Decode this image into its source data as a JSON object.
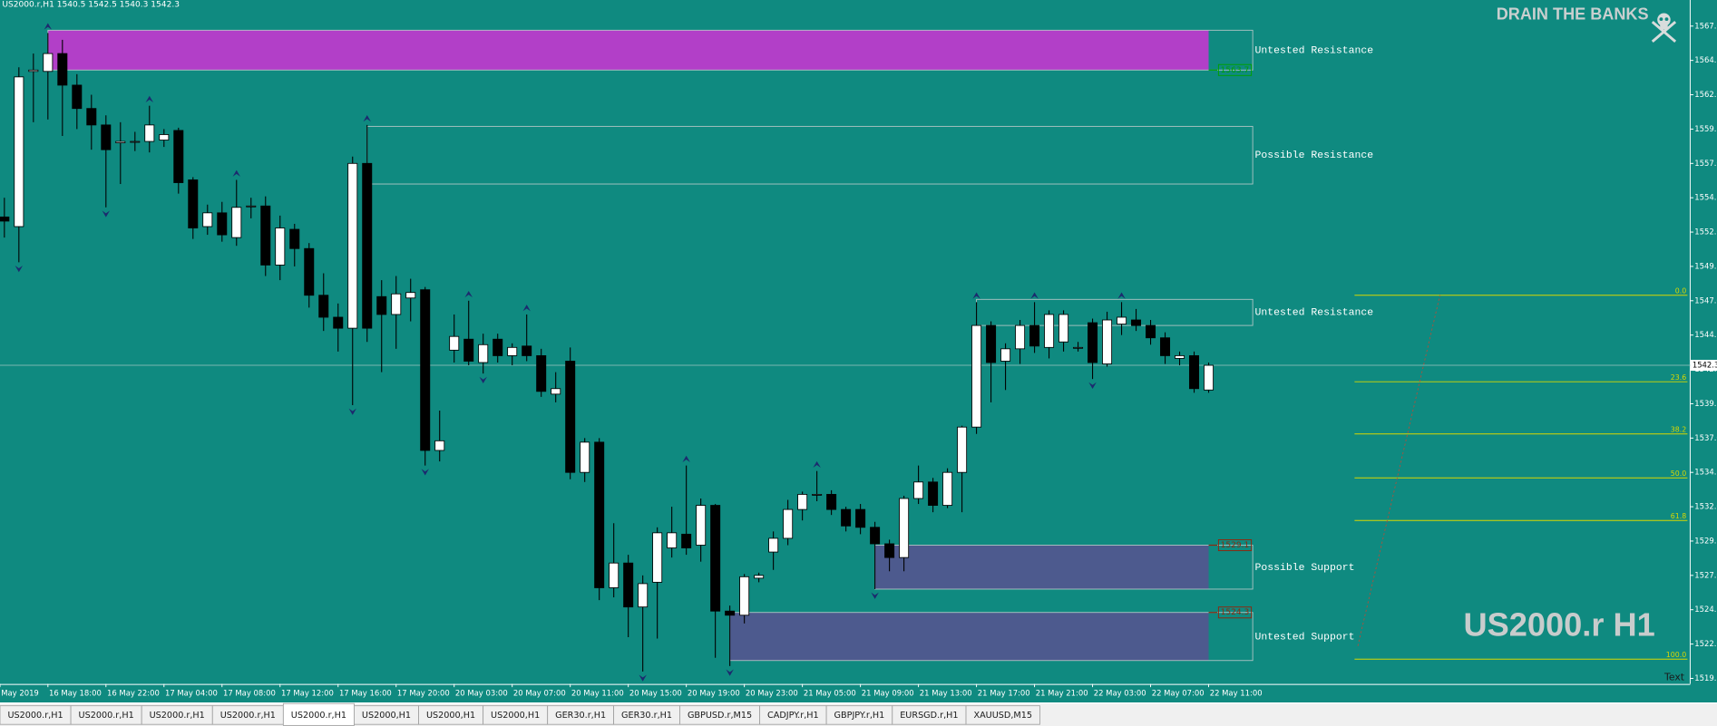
{
  "chart_data": {
    "type": "candlestick",
    "header": "US2000.r,H1  1540.5 1542.5 1540.3 1542.3",
    "brand": "DRAIN THE BANKS",
    "watermark": "US2000.r H1",
    "corner_text": "Text",
    "background": "#0f8a80",
    "categories": [
      "May 2019",
      null,
      null,
      "16 May 18:00",
      null,
      null,
      null,
      "16 May 22:00",
      null,
      null,
      null,
      "17 May 04:00",
      null,
      null,
      null,
      "17 May 08:00",
      null,
      null,
      null,
      "17 May 12:00",
      null,
      null,
      null,
      "17 May 16:00",
      null,
      null,
      null,
      "17 May 20:00",
      null,
      null,
      null,
      "20 May 03:00",
      null,
      null,
      null,
      "20 May 07:00",
      null,
      null,
      null,
      "20 May 11:00",
      null,
      null,
      null,
      "20 May 15:00",
      null,
      null,
      null,
      "20 May 19:00",
      null,
      null,
      null,
      "20 May 23:00",
      null,
      null,
      null,
      "21 May 05:00",
      null,
      null,
      null,
      "21 May 09:00",
      null,
      null,
      null,
      "21 May 13:00",
      null,
      null,
      null,
      "21 May 17:00",
      null,
      null,
      null,
      "21 May 21:00",
      null,
      null,
      null,
      "22 May 03:00",
      null,
      null,
      null,
      "22 May 07:00",
      null,
      null,
      null,
      "22 May 11:00"
    ],
    "open": [
      1553.1,
      1552.4,
      1563.7,
      1563.7,
      1565.0,
      1562.7,
      1561.0,
      1559.8,
      1558.5,
      1558.6,
      1558.6,
      1558.7,
      1559.4,
      1555.8,
      1552.4,
      1553.4,
      1551.6,
      1553.9,
      1553.9,
      1549.6,
      1552.2,
      1550.8,
      1547.4,
      1545.8,
      1545.0,
      1557.0,
      1547.3,
      1546.0,
      1547.2,
      1547.8,
      1536.1,
      1543.4,
      1544.2,
      1542.5,
      1544.2,
      1543.0,
      1543.7,
      1543.0,
      1540.2,
      1542.6,
      1534.5,
      1536.7,
      1526.1,
      1527.9,
      1524.7,
      1526.5,
      1529.0,
      1530.0,
      1529.2,
      1532.1,
      1524.4,
      1524.1,
      1526.8,
      1528.7,
      1529.7,
      1531.8,
      1532.9,
      1532.9,
      1531.8,
      1531.8,
      1530.5,
      1529.3,
      1528.3,
      1532.6,
      1533.8,
      1532.1,
      1534.5,
      1537.8,
      1545.2,
      1542.6,
      1543.5,
      1545.2,
      1543.6,
      1544.0,
      1543.6,
      1545.4,
      1542.4,
      1545.3,
      1545.6,
      1545.2,
      1544.3,
      1542.8,
      1543.0,
      1540.5
    ],
    "high": [
      1554.5,
      1564.0,
      1565.0,
      1566.5,
      1566.0,
      1563.5,
      1562.0,
      1560.5,
      1560.0,
      1559.3,
      1561.2,
      1559.5,
      1559.6,
      1556.0,
      1554.0,
      1554.2,
      1555.8,
      1554.5,
      1554.6,
      1553.2,
      1552.6,
      1551.2,
      1549.0,
      1546.8,
      1557.5,
      1559.8,
      1548.5,
      1548.8,
      1548.6,
      1548.0,
      1539.0,
      1546.0,
      1547.0,
      1544.6,
      1544.6,
      1543.9,
      1546.0,
      1543.5,
      1541.8,
      1543.6,
      1537.0,
      1537.0,
      1530.8,
      1528.5,
      1527.0,
      1530.5,
      1532.0,
      1535.0,
      1532.6,
      1532.2,
      1524.8,
      1527.1,
      1527.2,
      1530.2,
      1532.5,
      1533.1,
      1534.6,
      1533.2,
      1532.0,
      1532.2,
      1530.9,
      1529.6,
      1532.8,
      1535.0,
      1534.1,
      1534.8,
      1537.9,
      1546.9,
      1545.5,
      1543.9,
      1545.6,
      1546.9,
      1546.3,
      1546.3,
      1544.0,
      1545.7,
      1546.2,
      1546.9,
      1546.4,
      1545.6,
      1544.7,
      1543.3,
      1543.3,
      1542.5
    ],
    "low": [
      1551.6,
      1549.8,
      1560.0,
      1560.2,
      1559.0,
      1559.5,
      1558.0,
      1553.8,
      1555.5,
      1557.9,
      1557.8,
      1558.2,
      1554.8,
      1551.5,
      1551.8,
      1551.3,
      1551.0,
      1553.0,
      1548.8,
      1548.5,
      1549.5,
      1546.5,
      1544.8,
      1543.3,
      1539.4,
      1544.0,
      1541.8,
      1543.5,
      1545.5,
      1535.0,
      1535.3,
      1542.5,
      1542.3,
      1541.7,
      1542.5,
      1542.3,
      1542.6,
      1540.0,
      1539.6,
      1534.0,
      1533.8,
      1525.2,
      1525.4,
      1522.5,
      1520.0,
      1522.4,
      1528.3,
      1528.5,
      1528.0,
      1521.0,
      1520.4,
      1523.5,
      1526.5,
      1527.4,
      1529.2,
      1531.0,
      1532.4,
      1531.4,
      1530.2,
      1530.0,
      1526.0,
      1527.3,
      1527.3,
      1532.2,
      1531.6,
      1531.9,
      1531.6,
      1537.3,
      1539.6,
      1540.5,
      1542.4,
      1543.2,
      1542.8,
      1543.3,
      1543.3,
      1541.3,
      1542.2,
      1544.5,
      1544.8,
      1543.8,
      1542.4,
      1542.3,
      1540.3,
      1540.3
    ],
    "close": [
      1552.8,
      1563.3,
      1563.8,
      1565.0,
      1562.7,
      1561.0,
      1559.8,
      1558.0,
      1558.6,
      1558.6,
      1559.8,
      1559.1,
      1555.6,
      1552.3,
      1553.4,
      1551.8,
      1553.8,
      1553.9,
      1549.6,
      1552.3,
      1550.8,
      1547.4,
      1545.8,
      1545.0,
      1557.0,
      1545.0,
      1546.0,
      1547.5,
      1547.6,
      1536.1,
      1536.8,
      1544.4,
      1542.6,
      1543.8,
      1543.0,
      1543.6,
      1543.0,
      1540.4,
      1540.6,
      1534.5,
      1536.7,
      1526.1,
      1527.9,
      1524.7,
      1526.4,
      1530.1,
      1530.1,
      1529.0,
      1532.1,
      1524.4,
      1524.1,
      1526.9,
      1527.0,
      1529.7,
      1531.8,
      1532.9,
      1532.9,
      1531.8,
      1530.6,
      1530.5,
      1529.3,
      1528.3,
      1532.6,
      1533.8,
      1532.1,
      1534.5,
      1537.8,
      1545.2,
      1542.5,
      1543.5,
      1545.2,
      1543.7,
      1546.0,
      1546.0,
      1543.6,
      1542.5,
      1545.6,
      1545.8,
      1545.2,
      1544.3,
      1543.0,
      1543.0,
      1540.6,
      1542.3
    ],
    "bull_color": "#ffffff",
    "bear_color": "#000000",
    "fractals_up": [
      3,
      10,
      16,
      25,
      32,
      36,
      47,
      56,
      67,
      71,
      77
    ],
    "fractals_down": [
      1,
      7,
      24,
      29,
      33,
      44,
      50,
      60,
      75
    ],
    "fractal_color": "#1c2a6e",
    "ylim": [
      1519.1,
      1568.9
    ],
    "yticks": [
      {
        "value": 1519.5,
        "label": "1519.5"
      },
      {
        "value": 1522,
        "label": "1522.0"
      },
      {
        "value": 1524.5,
        "label": "1524.5"
      },
      {
        "value": 1527,
        "label": "1527.0"
      },
      {
        "value": 1529.5,
        "label": "1529.5"
      },
      {
        "value": 1532,
        "label": "1532.0"
      },
      {
        "value": 1534.5,
        "label": "1534.5"
      },
      {
        "value": 1537,
        "label": "1537.0"
      },
      {
        "value": 1539.5,
        "label": "1539.5"
      },
      {
        "value": 1542,
        "label": "1542.0"
      },
      {
        "value": 1544.5,
        "label": "1544.5"
      },
      {
        "value": 1547,
        "label": "1547.0"
      },
      {
        "value": 1549.5,
        "label": "1549.5"
      },
      {
        "value": 1552,
        "label": "1552.0"
      },
      {
        "value": 1554.5,
        "label": "1554.5"
      },
      {
        "value": 1557,
        "label": "1557.0"
      },
      {
        "value": 1559.5,
        "label": "1559.5"
      },
      {
        "value": 1562,
        "label": "1562.0"
      },
      {
        "value": 1564.5,
        "label": "1564.5"
      },
      {
        "value": 1567,
        "label": "1567.0"
      }
    ],
    "current_price": 1542.3,
    "zones": [
      {
        "label": "Untested Resistance",
        "top": 1566.7,
        "bottom": 1563.8,
        "start": 3,
        "fill": "#b23fc8",
        "tag": "1563.7",
        "tag_color": "#00a000"
      },
      {
        "label": "Possible Resistance",
        "top": 1559.7,
        "bottom": 1555.5,
        "start": 25,
        "fill": "none"
      },
      {
        "label": "Untested Resistance",
        "top": 1547.1,
        "bottom": 1545.2,
        "start": 67,
        "fill": "none"
      },
      {
        "label": "Possible Support",
        "top": 1529.2,
        "bottom": 1526.0,
        "start": 60,
        "fill": "#4d5a8e",
        "tag": "1529.1",
        "tag_color": "#8b2a10"
      },
      {
        "label": "Untested Support",
        "top": 1524.3,
        "bottom": 1520.8,
        "start": 50,
        "fill": "#4d5a8e",
        "tag": "1524.3",
        "tag_color": "#8b2a10"
      }
    ],
    "fib_color": "#d8d800",
    "fib_levels": [
      {
        "label": "0.0",
        "price": 1547.4
      },
      {
        "label": "23.6",
        "price": 1541.1
      },
      {
        "label": "38.2",
        "price": 1537.3
      },
      {
        "label": "50.0",
        "price": 1534.1
      },
      {
        "label": "61.8",
        "price": 1531.0
      },
      {
        "label": "100.0",
        "price": 1520.9
      }
    ]
  },
  "tabs": [
    "US2000.r,H1",
    "US2000.r,H1",
    "US2000.r,H1",
    "US2000.r,H1",
    "US2000.r,H1",
    "US2000,H1",
    "US2000,H1",
    "US2000,H1",
    "GER30.r,H1",
    "GER30.r,H1",
    "GBPUSD.r,M15",
    "CADJPY.r,H1",
    "GBPJPY.r,H1",
    "EURSGD.r,H1",
    "XAUUSD,M15"
  ],
  "active_tab": 4
}
